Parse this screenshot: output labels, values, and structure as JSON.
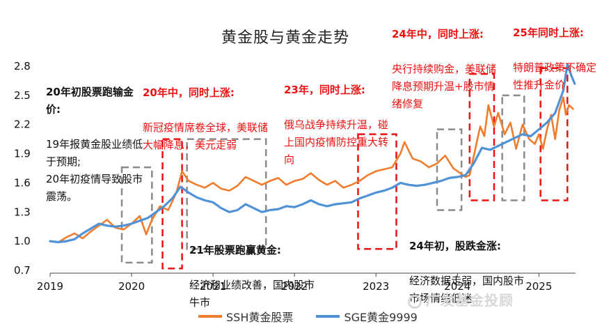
{
  "chart_data": {
    "type": "line",
    "title": "黄金股与黄金走势",
    "x_ticks": [
      "2019",
      "2020",
      "2021",
      "2022",
      "2023",
      "2024",
      "2025"
    ],
    "y_ticks": [
      "0.7",
      "1.0",
      "1.3",
      "1.6",
      "1.9",
      "2.2",
      "2.5",
      "2.8"
    ],
    "ylim": [
      0.7,
      2.85
    ],
    "xlim": [
      2019.0,
      2025.45
    ],
    "legend_position": "bottom",
    "series": [
      {
        "name": "SSH黄金股票",
        "color": "#f07d2d",
        "points": [
          [
            2019.0,
            1.0
          ],
          [
            2019.1,
            0.99
          ],
          [
            2019.2,
            1.04
          ],
          [
            2019.3,
            1.08
          ],
          [
            2019.4,
            1.03
          ],
          [
            2019.5,
            1.1
          ],
          [
            2019.6,
            1.16
          ],
          [
            2019.7,
            1.22
          ],
          [
            2019.8,
            1.14
          ],
          [
            2019.9,
            1.12
          ],
          [
            2020.0,
            1.18
          ],
          [
            2020.1,
            1.26
          ],
          [
            2020.18,
            1.07
          ],
          [
            2020.25,
            1.22
          ],
          [
            2020.35,
            1.36
          ],
          [
            2020.45,
            1.32
          ],
          [
            2020.55,
            1.5
          ],
          [
            2020.62,
            1.72
          ],
          [
            2020.7,
            1.62
          ],
          [
            2020.8,
            1.58
          ],
          [
            2020.9,
            1.55
          ],
          [
            2021.0,
            1.6
          ],
          [
            2021.1,
            1.54
          ],
          [
            2021.2,
            1.52
          ],
          [
            2021.3,
            1.57
          ],
          [
            2021.4,
            1.66
          ],
          [
            2021.5,
            1.62
          ],
          [
            2021.6,
            1.58
          ],
          [
            2021.7,
            1.62
          ],
          [
            2021.8,
            1.65
          ],
          [
            2021.9,
            1.58
          ],
          [
            2022.0,
            1.62
          ],
          [
            2022.1,
            1.64
          ],
          [
            2022.2,
            1.7
          ],
          [
            2022.3,
            1.63
          ],
          [
            2022.4,
            1.58
          ],
          [
            2022.5,
            1.62
          ],
          [
            2022.6,
            1.55
          ],
          [
            2022.7,
            1.58
          ],
          [
            2022.8,
            1.62
          ],
          [
            2022.9,
            1.68
          ],
          [
            2023.0,
            1.72
          ],
          [
            2023.1,
            1.74
          ],
          [
            2023.2,
            1.76
          ],
          [
            2023.3,
            1.9
          ],
          [
            2023.35,
            2.02
          ],
          [
            2023.45,
            1.85
          ],
          [
            2023.55,
            1.82
          ],
          [
            2023.65,
            1.76
          ],
          [
            2023.75,
            1.8
          ],
          [
            2023.85,
            1.88
          ],
          [
            2023.95,
            1.75
          ],
          [
            2024.0,
            1.72
          ],
          [
            2024.1,
            1.66
          ],
          [
            2024.15,
            1.68
          ],
          [
            2024.22,
            1.95
          ],
          [
            2024.28,
            2.18
          ],
          [
            2024.33,
            2.08
          ],
          [
            2024.38,
            2.4
          ],
          [
            2024.45,
            2.18
          ],
          [
            2024.5,
            2.32
          ],
          [
            2024.58,
            2.1
          ],
          [
            2024.65,
            2.22
          ],
          [
            2024.72,
            1.95
          ],
          [
            2024.8,
            2.2
          ],
          [
            2024.88,
            2.05
          ],
          [
            2024.95,
            2.0
          ],
          [
            2025.0,
            2.1
          ],
          [
            2025.05,
            1.95
          ],
          [
            2025.1,
            2.15
          ],
          [
            2025.15,
            2.3
          ],
          [
            2025.2,
            2.05
          ],
          [
            2025.25,
            2.35
          ],
          [
            2025.3,
            2.48
          ],
          [
            2025.33,
            2.3
          ],
          [
            2025.37,
            2.4
          ],
          [
            2025.42,
            2.36
          ]
        ]
      },
      {
        "name": "SGE黄金9999",
        "color": "#4f92d6",
        "points": [
          [
            2019.0,
            1.0
          ],
          [
            2019.1,
            0.99
          ],
          [
            2019.2,
            1.0
          ],
          [
            2019.3,
            1.02
          ],
          [
            2019.4,
            1.08
          ],
          [
            2019.5,
            1.13
          ],
          [
            2019.6,
            1.18
          ],
          [
            2019.7,
            1.16
          ],
          [
            2019.8,
            1.15
          ],
          [
            2019.9,
            1.16
          ],
          [
            2020.0,
            1.18
          ],
          [
            2020.1,
            1.21
          ],
          [
            2020.2,
            1.24
          ],
          [
            2020.3,
            1.3
          ],
          [
            2020.4,
            1.36
          ],
          [
            2020.5,
            1.44
          ],
          [
            2020.6,
            1.56
          ],
          [
            2020.7,
            1.5
          ],
          [
            2020.8,
            1.45
          ],
          [
            2020.9,
            1.42
          ],
          [
            2021.0,
            1.4
          ],
          [
            2021.1,
            1.34
          ],
          [
            2021.2,
            1.3
          ],
          [
            2021.3,
            1.32
          ],
          [
            2021.4,
            1.38
          ],
          [
            2021.5,
            1.34
          ],
          [
            2021.6,
            1.3
          ],
          [
            2021.7,
            1.32
          ],
          [
            2021.8,
            1.33
          ],
          [
            2021.9,
            1.36
          ],
          [
            2022.0,
            1.35
          ],
          [
            2022.1,
            1.38
          ],
          [
            2022.2,
            1.42
          ],
          [
            2022.3,
            1.38
          ],
          [
            2022.4,
            1.36
          ],
          [
            2022.5,
            1.38
          ],
          [
            2022.6,
            1.39
          ],
          [
            2022.7,
            1.4
          ],
          [
            2022.8,
            1.44
          ],
          [
            2022.9,
            1.47
          ],
          [
            2023.0,
            1.5
          ],
          [
            2023.1,
            1.52
          ],
          [
            2023.2,
            1.55
          ],
          [
            2023.3,
            1.6
          ],
          [
            2023.4,
            1.58
          ],
          [
            2023.5,
            1.57
          ],
          [
            2023.6,
            1.58
          ],
          [
            2023.7,
            1.6
          ],
          [
            2023.8,
            1.62
          ],
          [
            2023.9,
            1.65
          ],
          [
            2024.0,
            1.66
          ],
          [
            2024.1,
            1.68
          ],
          [
            2024.2,
            1.8
          ],
          [
            2024.3,
            1.96
          ],
          [
            2024.4,
            1.94
          ],
          [
            2024.5,
            1.98
          ],
          [
            2024.6,
            2.02
          ],
          [
            2024.7,
            2.06
          ],
          [
            2024.8,
            2.1
          ],
          [
            2024.9,
            2.08
          ],
          [
            2025.0,
            2.15
          ],
          [
            2025.1,
            2.22
          ],
          [
            2025.2,
            2.32
          ],
          [
            2025.3,
            2.55
          ],
          [
            2025.35,
            2.82
          ],
          [
            2025.4,
            2.7
          ],
          [
            2025.44,
            2.62
          ]
        ]
      }
    ],
    "annotations": [
      {
        "head": "20年初股票跑输金价:",
        "body": "19年报黄金股业绩低于预期;\n20年初疫情导致股市震荡。",
        "color": "black"
      },
      {
        "head": "20年中，同时上涨:",
        "body": "新冠疫情席卷全球，美联储大幅降息，美元走弱",
        "color": "red"
      },
      {
        "head": "23年，同时上涨:",
        "body": "俄乌战争持续升温，碰上国内疫情防控重大转向",
        "color": "red"
      },
      {
        "head": "24年中，同时上涨:",
        "body": "央行持续购金，美联储降息预期升温+股市情绪修复",
        "color": "red"
      },
      {
        "head": "25年同时上涨:",
        "body": "特朗普政策不确定性推升金价",
        "color": "red"
      },
      {
        "head": "21年股票跑赢黄金:",
        "body": "经济和业绩改善，国内股市牛市",
        "color": "black"
      },
      {
        "head": "24年初，股跌金涨:",
        "body": "经济数据走弱，国内股市市场情绪低迷",
        "color": "black"
      }
    ],
    "highlight_boxes": [
      {
        "color": "gray",
        "x": [
          2019.88,
          2020.25
        ],
        "y": [
          0.78,
          1.76
        ]
      },
      {
        "color": "red",
        "x": [
          2020.38,
          2020.62
        ],
        "y": [
          0.72,
          2.05
        ]
      },
      {
        "color": "gray",
        "x": [
          2020.68,
          2021.65
        ],
        "y": [
          0.92,
          2.05
        ]
      },
      {
        "color": "red",
        "x": [
          2022.78,
          2023.25
        ],
        "y": [
          0.92,
          2.1
        ]
      },
      {
        "color": "gray",
        "x": [
          2023.75,
          2024.05
        ],
        "y": [
          1.32,
          2.15
        ]
      },
      {
        "color": "red",
        "x": [
          2024.15,
          2024.45
        ],
        "y": [
          1.42,
          2.72
        ]
      },
      {
        "color": "gray",
        "x": [
          2024.55,
          2024.82
        ],
        "y": [
          1.42,
          2.5
        ]
      },
      {
        "color": "red",
        "x": [
          2025.02,
          2025.35
        ],
        "y": [
          1.42,
          2.78
        ]
      }
    ]
  },
  "legend": {
    "labels": [
      "SSH黄金股票",
      "SGE黄金9999"
    ]
  },
  "watermark": {
    "text": "广发基金投顾"
  }
}
